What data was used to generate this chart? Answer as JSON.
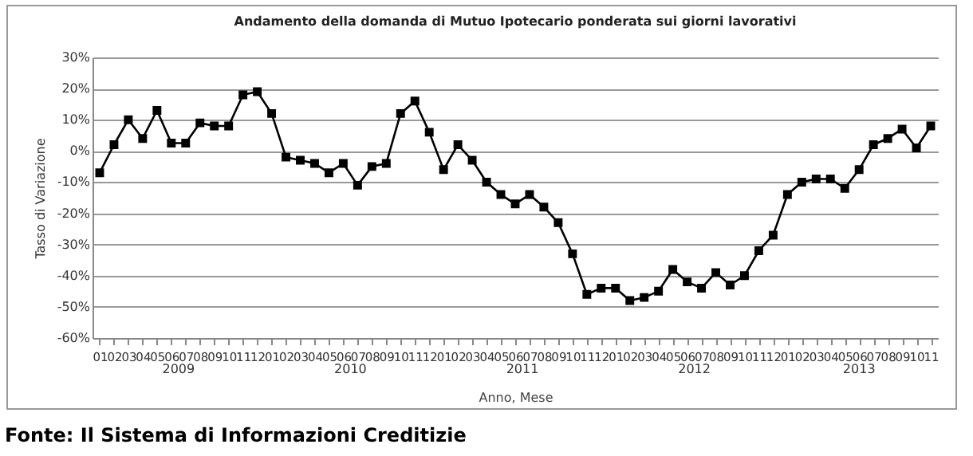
{
  "chart_data": {
    "type": "line",
    "title": "Andamento della domanda di Mutuo Ipotecario ponderata sui giorni lavorativi",
    "xlabel": "Anno, Mese",
    "ylabel": "Tasso di Variazione",
    "categories": [
      "01",
      "02",
      "03",
      "04",
      "05",
      "06",
      "07",
      "08",
      "09",
      "10",
      "11",
      "12",
      "01",
      "02",
      "03",
      "04",
      "05",
      "06",
      "07",
      "08",
      "09",
      "10",
      "11",
      "12",
      "01",
      "02",
      "03",
      "04",
      "05",
      "06",
      "07",
      "08",
      "09",
      "10",
      "11",
      "12",
      "01",
      "02",
      "03",
      "04",
      "05",
      "06",
      "07",
      "08",
      "09",
      "10",
      "11",
      "12",
      "01",
      "02",
      "03",
      "04",
      "05",
      "06",
      "07",
      "08",
      "09",
      "10",
      "11"
    ],
    "series": [
      {
        "color": "#000000",
        "values": [
          -7,
          2,
          10,
          4,
          13,
          2.5,
          2.5,
          9,
          8,
          8,
          18,
          19,
          12,
          -2,
          -3,
          -4,
          -7,
          -4,
          -11,
          -5,
          -4,
          12,
          16,
          6,
          -6,
          2,
          -3,
          -10,
          -14,
          -17,
          -14,
          -18,
          -23,
          -33,
          -46,
          -44,
          -44,
          -48,
          -47,
          -45,
          -38,
          -42,
          -44,
          -39,
          -43,
          -40,
          -32,
          -27,
          -14,
          -10,
          -9,
          -9,
          -12,
          -6,
          2,
          4,
          7,
          1,
          8
        ]
      }
    ],
    "ylim": [
      -60,
      30
    ],
    "yticks": [
      {
        "value": 30,
        "label": "30%"
      },
      {
        "value": 20,
        "label": "20%"
      },
      {
        "value": 10,
        "label": "10%"
      },
      {
        "value": 0,
        "label": "0%"
      },
      {
        "value": -10,
        "label": "-10%"
      },
      {
        "value": -20,
        "label": "-20%"
      },
      {
        "value": -30,
        "label": "-30%"
      },
      {
        "value": -40,
        "label": "-40%"
      },
      {
        "value": -50,
        "label": "-50%"
      },
      {
        "value": -60,
        "label": "-60%"
      }
    ],
    "grid": "y",
    "marker": "square",
    "line_style": "solid",
    "annotations": [
      "2009",
      "2010",
      "2011",
      "2012",
      "2013",
      "Fonte: Il Sistema di Informazioni Creditizie"
    ]
  }
}
